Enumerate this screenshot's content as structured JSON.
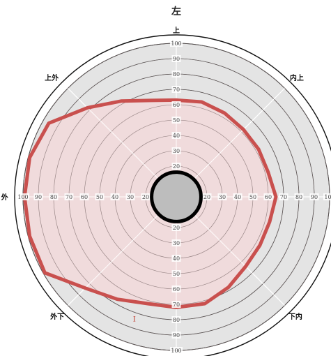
{
  "title": "左",
  "chart_data": {
    "type": "polar-area",
    "radial_range": [
      0,
      100
    ],
    "radial_ticks": [
      10,
      20,
      30,
      40,
      50,
      60,
      70,
      80,
      90,
      100
    ],
    "tick_labels": [
      "10",
      "20",
      "30",
      "40",
      "50",
      "60",
      "70",
      "80",
      "90",
      "100"
    ],
    "directions": [
      {
        "angle": 90,
        "label": "上"
      },
      {
        "angle": 45,
        "label": "内上"
      },
      {
        "angle": 0,
        "label": ""
      },
      {
        "angle": 315,
        "label": "下内"
      },
      {
        "angle": 270,
        "label": "下"
      },
      {
        "angle": 225,
        "label": "外下"
      },
      {
        "angle": 180,
        "label": "外"
      },
      {
        "angle": 135,
        "label": "上外"
      }
    ],
    "series": [
      {
        "points": [
          {
            "angle": 0,
            "r": 65
          },
          {
            "angle": 15,
            "r": 62
          },
          {
            "angle": 30,
            "r": 62
          },
          {
            "angle": 45,
            "r": 62
          },
          {
            "angle": 60,
            "r": 63
          },
          {
            "angle": 75,
            "r": 64
          },
          {
            "angle": 90,
            "r": 63
          },
          {
            "angle": 105,
            "r": 65
          },
          {
            "angle": 120,
            "r": 72
          },
          {
            "angle": 135,
            "r": 82
          },
          {
            "angle": 150,
            "r": 96
          },
          {
            "angle": 165,
            "r": 99
          },
          {
            "angle": 180,
            "r": 99
          },
          {
            "angle": 195,
            "r": 99
          },
          {
            "angle": 210,
            "r": 99
          },
          {
            "angle": 225,
            "r": 84
          },
          {
            "angle": 240,
            "r": 77
          },
          {
            "angle": 255,
            "r": 72
          },
          {
            "angle": 270,
            "r": 72
          },
          {
            "angle": 285,
            "r": 72
          },
          {
            "angle": 300,
            "r": 68
          },
          {
            "angle": 315,
            "r": 64
          },
          {
            "angle": 330,
            "r": 63
          },
          {
            "angle": 345,
            "r": 63
          }
        ],
        "line_color": "#c9504e",
        "fill_color": "#f2d9da"
      }
    ],
    "center_marker": {
      "r": 7
    },
    "annotation": {
      "text": "I",
      "angle": 251,
      "r": 84,
      "color": "#c0392b"
    },
    "grid": true,
    "background_color": "#e4e4e4"
  }
}
